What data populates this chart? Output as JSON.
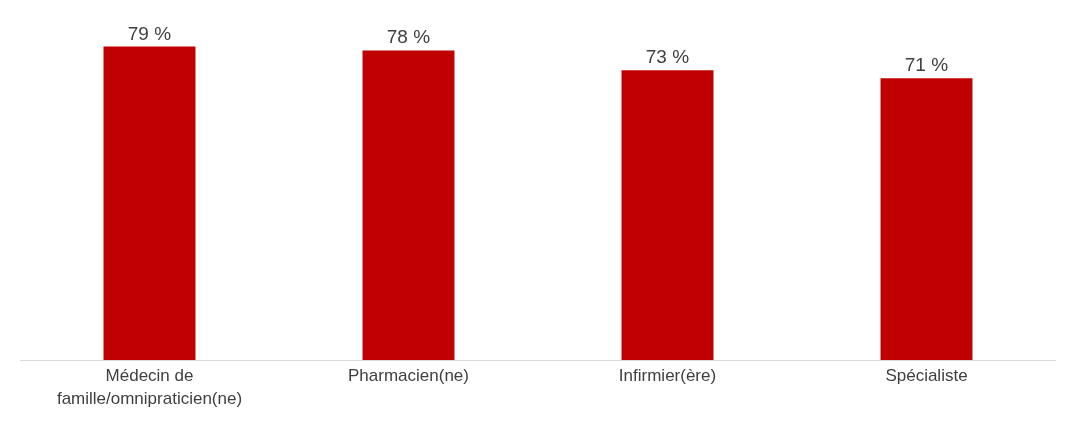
{
  "chart_data": {
    "type": "bar",
    "categories": [
      "Médecin de famille/omnipraticien(ne)",
      "Pharmacien(ne)",
      "Infirmier(ère)",
      "Spécialiste"
    ],
    "values": [
      79,
      78,
      73,
      71
    ],
    "value_labels": [
      "79 %",
      "78 %",
      "73 %",
      "71 %"
    ],
    "color": "#c00000",
    "legend": false
  }
}
